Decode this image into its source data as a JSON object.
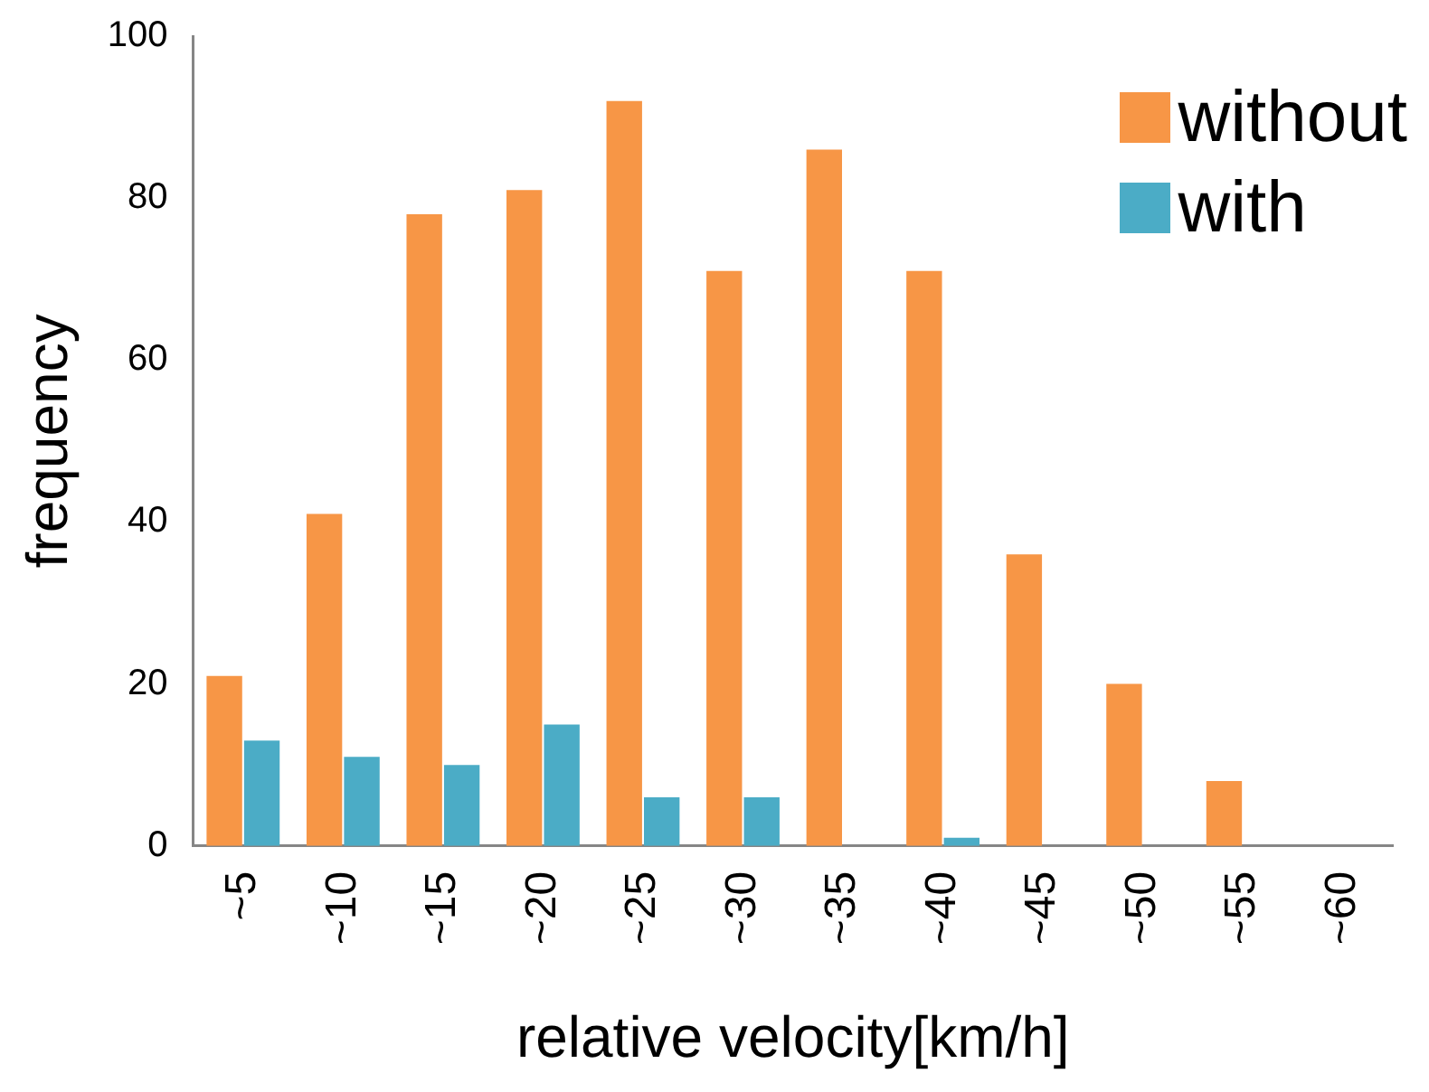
{
  "chart_data": {
    "type": "bar",
    "xlabel": "relative velocity[km/h]",
    "ylabel": "frequency",
    "categories": [
      "~5",
      "~10",
      "~15",
      "~20",
      "~25",
      "~30",
      "~35",
      "~40",
      "~45",
      "~50",
      "~55",
      "~60"
    ],
    "series": [
      {
        "name": "without",
        "color": "#f79646",
        "values": [
          21,
          41,
          78,
          81,
          92,
          71,
          86,
          71,
          36,
          20,
          8,
          0
        ]
      },
      {
        "name": "with",
        "color": "#4bacc6",
        "values": [
          13,
          11,
          10,
          15,
          6,
          6,
          0,
          1,
          0,
          0,
          0,
          0
        ]
      }
    ],
    "ylim": [
      0,
      100
    ],
    "yticks": [
      0,
      20,
      40,
      60,
      80,
      100
    ],
    "grid": false,
    "legend": "top right"
  }
}
